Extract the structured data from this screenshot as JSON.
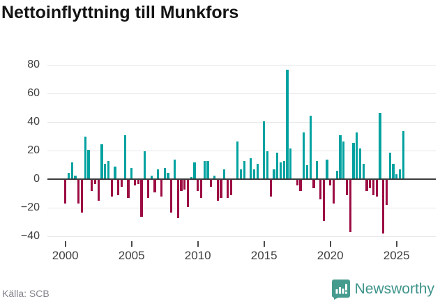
{
  "title": "Nettoinflyttning till Munkfors",
  "footer": {
    "source": "Källa: SCB",
    "logo_text": "Newsworthy"
  },
  "colors": {
    "positive_bar": "#00a2a0",
    "negative_bar": "#9c0d43",
    "gridline": "#e7e7ea",
    "zero_line": "#3c3c3c",
    "axis_text": "#3f3f3f",
    "title_text": "#141414",
    "source_text": "#82828c",
    "logo_teal": "#459b8e",
    "logo_text_color": "#3e948b"
  },
  "chart_data": {
    "type": "bar",
    "title": "Nettoinflyttning till Munkfors",
    "xlabel": "",
    "ylabel": "",
    "frequency": "quarterly",
    "start_period": "2000Q1",
    "end_period": "2025Q3",
    "ylim": [
      -47,
      88
    ],
    "grid": true,
    "y_ticks": [
      {
        "value": 80,
        "label": "80"
      },
      {
        "value": 60,
        "label": "60"
      },
      {
        "value": 40,
        "label": "40"
      },
      {
        "value": 20,
        "label": "20"
      },
      {
        "value": 0,
        "label": "0"
      },
      {
        "value": -20,
        "label": "−20"
      },
      {
        "value": -40,
        "label": "−40"
      }
    ],
    "x_ticks": [
      {
        "label": "2000",
        "bar_index": 0
      },
      {
        "label": "2005",
        "bar_index": 20
      },
      {
        "label": "2010",
        "bar_index": 40
      },
      {
        "label": "2015",
        "bar_index": 60
      },
      {
        "label": "2020",
        "bar_index": 80
      },
      {
        "label": "2025",
        "bar_index": 100
      }
    ],
    "values": [
      -17,
      4,
      11,
      2,
      -17,
      -23,
      29,
      20,
      -8,
      -3,
      -15,
      24,
      10,
      12,
      -12,
      8,
      -11,
      -5,
      30,
      -13,
      7,
      -4,
      -3,
      -26,
      19,
      -13,
      2,
      -9,
      6,
      -12,
      7,
      4,
      -23,
      13,
      -27,
      -8,
      -7,
      -19,
      1,
      11,
      -8,
      -13,
      12,
      12,
      -5,
      2,
      -15,
      -13,
      6,
      -13,
      -11,
      0,
      26,
      6,
      12,
      0,
      14,
      6,
      10,
      0,
      40,
      19,
      -12,
      6,
      18,
      11,
      12,
      76,
      21,
      0,
      -4,
      -8,
      32,
      9,
      44,
      -6,
      12,
      -14,
      -29,
      13,
      -4,
      -17,
      5,
      30,
      26,
      -11,
      -37,
      25,
      32,
      21,
      10,
      -8,
      -6,
      -11,
      -12,
      46,
      -38,
      -18,
      18,
      10,
      3,
      6,
      33
    ]
  }
}
